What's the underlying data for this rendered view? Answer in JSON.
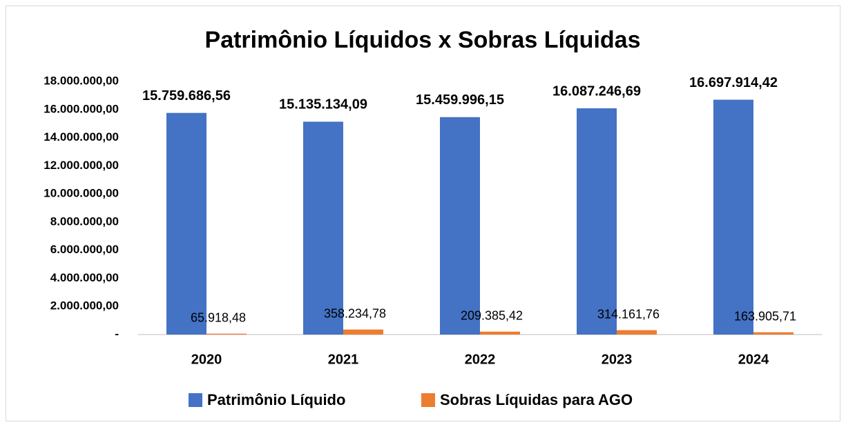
{
  "chart_data": {
    "type": "bar",
    "title": "Patrimônio Líquidos x Sobras Líquidas",
    "categories": [
      "2020",
      "2021",
      "2022",
      "2023",
      "2024"
    ],
    "series": [
      {
        "name": "Patrimônio Líquido",
        "color": "#4472c4",
        "values": [
          15759686.56,
          15135134.09,
          15459996.15,
          16087246.69,
          16697914.42
        ],
        "value_labels": [
          "15.759.686,56",
          "15.135.134,09",
          "15.459.996,15",
          "16.087.246,69",
          "16.697.914,42"
        ]
      },
      {
        "name": "Sobras Líquidas para AGO",
        "color": "#ed7d31",
        "values": [
          65918.48,
          358234.78,
          209385.42,
          314161.76,
          163905.71
        ],
        "value_labels": [
          "65.918,48",
          "358.234,78",
          "209.385,42",
          "314.161,76",
          "163.905,71"
        ]
      }
    ],
    "ylim": [
      0,
      18000000
    ],
    "yticks": [
      {
        "value": 0,
        "label": "-"
      },
      {
        "value": 2000000,
        "label": "2.000.000,00"
      },
      {
        "value": 4000000,
        "label": "4.000.000,00"
      },
      {
        "value": 6000000,
        "label": "6.000.000,00"
      },
      {
        "value": 8000000,
        "label": "8.000.000,00"
      },
      {
        "value": 10000000,
        "label": "10.000.000,00"
      },
      {
        "value": 12000000,
        "label": "12.000.000,00"
      },
      {
        "value": 14000000,
        "label": "14.000.000,00"
      },
      {
        "value": 16000000,
        "label": "16.000.000,00"
      },
      {
        "value": 18000000,
        "label": "18.000.000,00"
      }
    ],
    "grid": false,
    "legend": "bottom"
  }
}
